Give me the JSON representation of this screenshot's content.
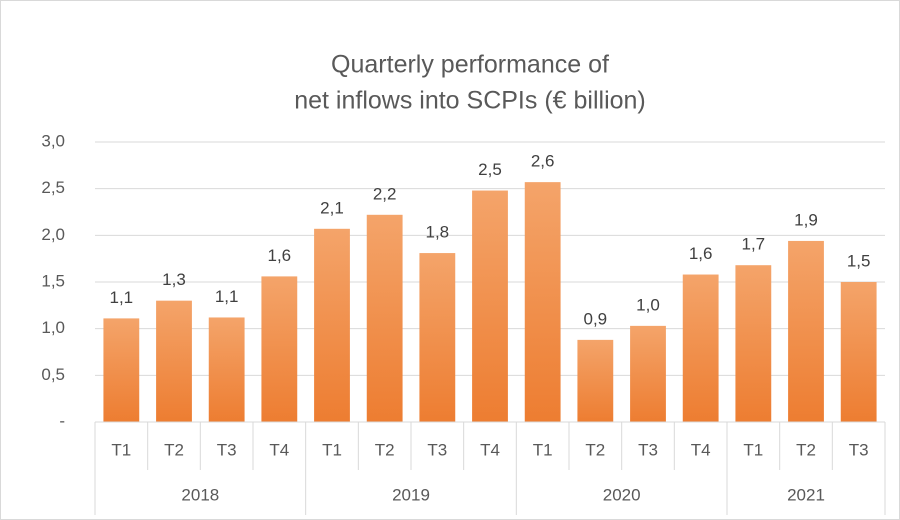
{
  "chart_data": {
    "type": "bar",
    "title": [
      "Quarterly performance of",
      "net inflows into SCPIs (€ billion)"
    ],
    "color": "#ed7d31",
    "groups": [
      {
        "name": "2018",
        "categories": [
          "T1",
          "T2",
          "T3",
          "T4"
        ],
        "values": [
          1.11,
          1.3,
          1.12,
          1.56
        ],
        "value_labels": [
          "1,1",
          "1,3",
          "1,1",
          "1,6"
        ]
      },
      {
        "name": "2019",
        "categories": [
          "T1",
          "T2",
          "T3",
          "T4"
        ],
        "values": [
          2.07,
          2.22,
          1.81,
          2.48
        ],
        "value_labels": [
          "2,1",
          "2,2",
          "1,8",
          "2,5"
        ]
      },
      {
        "name": "2020",
        "categories": [
          "T1",
          "T2",
          "T3",
          "T4"
        ],
        "values": [
          2.57,
          0.88,
          1.03,
          1.58
        ],
        "value_labels": [
          "2,6",
          "0,9",
          "1,0",
          "1,6"
        ]
      },
      {
        "name": "2021",
        "categories": [
          "T1",
          "T2",
          "T3"
        ],
        "values": [
          1.68,
          1.94,
          1.5
        ],
        "value_labels": [
          "1,7",
          "1,9",
          "1,5"
        ]
      }
    ],
    "ylim": [
      0,
      3
    ],
    "yticks": [
      {
        "value": 0,
        "label": "-"
      },
      {
        "value": 0.5,
        "label": "0,5"
      },
      {
        "value": 1,
        "label": "1,0"
      },
      {
        "value": 1.5,
        "label": "1,5"
      },
      {
        "value": 2,
        "label": "2,0"
      },
      {
        "value": 2.5,
        "label": "2,5"
      },
      {
        "value": 3,
        "label": "3,0"
      }
    ],
    "grid": true
  }
}
